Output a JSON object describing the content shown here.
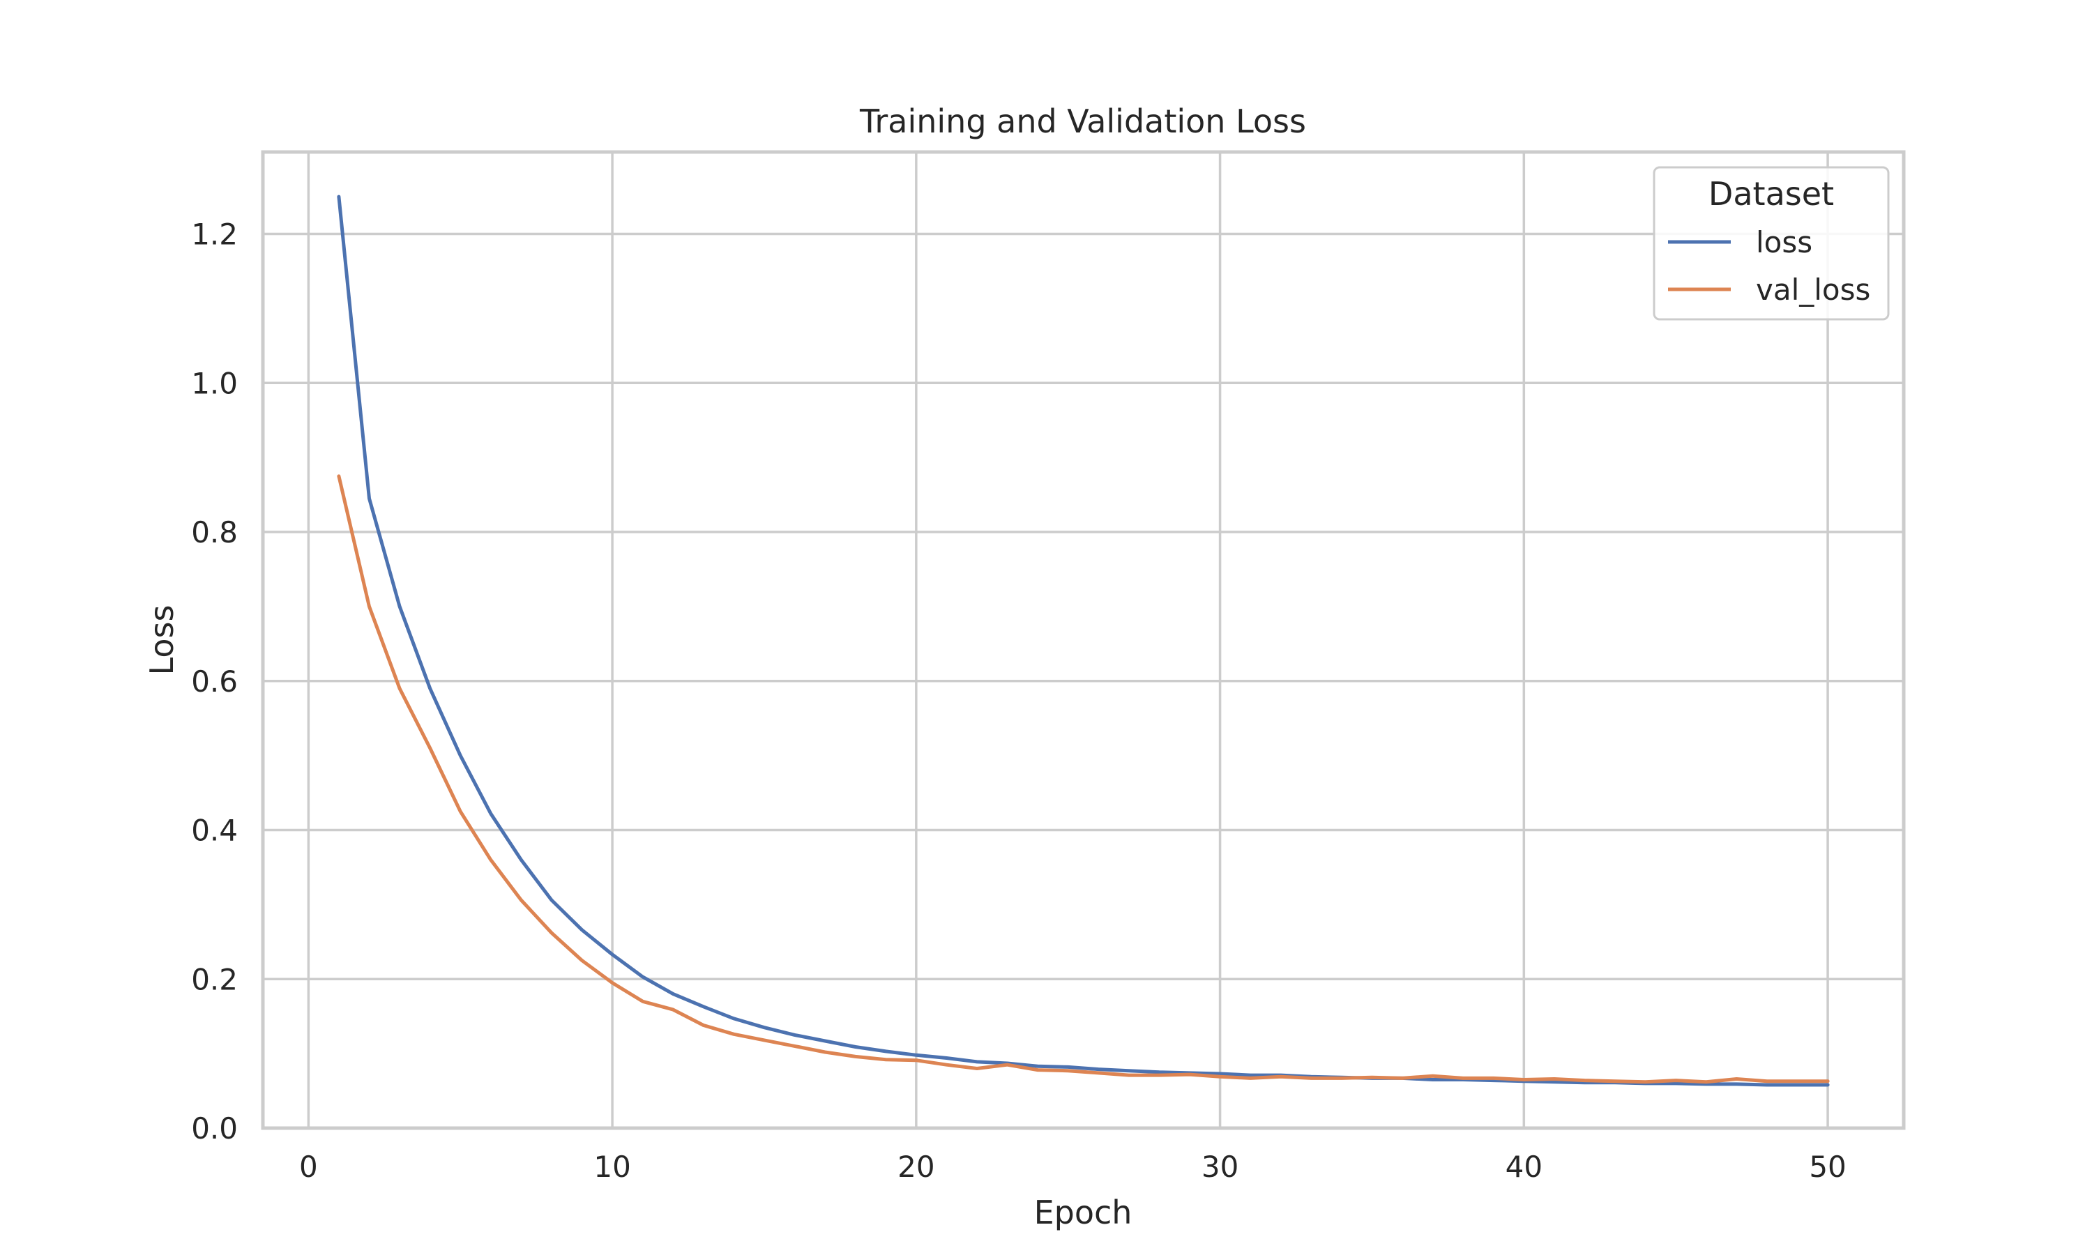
{
  "chart_data": {
    "type": "line",
    "title": "Training and Validation Loss",
    "xlabel": "Epoch",
    "ylabel": "Loss",
    "xlim": [
      -1.5,
      52.5
    ],
    "ylim": [
      0.0,
      1.31
    ],
    "x_ticks": [
      0,
      10,
      20,
      30,
      40,
      50
    ],
    "x_tick_labels": [
      "0",
      "10",
      "20",
      "30",
      "40",
      "50"
    ],
    "y_ticks": [
      0.0,
      0.2,
      0.4,
      0.6,
      0.8,
      1.0,
      1.2
    ],
    "y_tick_labels": [
      "0.0",
      "0.2",
      "0.4",
      "0.6",
      "0.8",
      "1.0",
      "1.2"
    ],
    "grid": true,
    "legend": {
      "title": "Dataset",
      "placement": "top-right"
    },
    "x": [
      1,
      2,
      3,
      4,
      5,
      6,
      7,
      8,
      9,
      10,
      11,
      12,
      13,
      14,
      15,
      16,
      17,
      18,
      19,
      20,
      21,
      22,
      23,
      24,
      25,
      26,
      27,
      28,
      29,
      30,
      31,
      32,
      33,
      34,
      35,
      36,
      37,
      38,
      39,
      40,
      41,
      42,
      43,
      44,
      45,
      46,
      47,
      48,
      49,
      50
    ],
    "series": [
      {
        "name": "loss",
        "color": "#4c72b0",
        "values": [
          1.25,
          0.845,
          0.7,
          0.59,
          0.5,
          0.422,
          0.36,
          0.306,
          0.266,
          0.233,
          0.203,
          0.18,
          0.163,
          0.147,
          0.135,
          0.125,
          0.117,
          0.109,
          0.103,
          0.098,
          0.094,
          0.089,
          0.087,
          0.083,
          0.082,
          0.079,
          0.077,
          0.075,
          0.074,
          0.073,
          0.071,
          0.071,
          0.069,
          0.068,
          0.067,
          0.067,
          0.065,
          0.065,
          0.064,
          0.063,
          0.062,
          0.061,
          0.061,
          0.06,
          0.06,
          0.059,
          0.059,
          0.058,
          0.058,
          0.058
        ]
      },
      {
        "name": "val_loss",
        "color": "#dd8452",
        "values": [
          0.875,
          0.7,
          0.59,
          0.51,
          0.425,
          0.36,
          0.306,
          0.262,
          0.225,
          0.195,
          0.17,
          0.159,
          0.138,
          0.126,
          0.118,
          0.11,
          0.102,
          0.096,
          0.092,
          0.091,
          0.085,
          0.08,
          0.085,
          0.078,
          0.077,
          0.074,
          0.071,
          0.071,
          0.072,
          0.069,
          0.067,
          0.069,
          0.067,
          0.067,
          0.068,
          0.067,
          0.07,
          0.067,
          0.067,
          0.065,
          0.066,
          0.064,
          0.063,
          0.062,
          0.064,
          0.062,
          0.066,
          0.063,
          0.063,
          0.063
        ]
      }
    ]
  }
}
